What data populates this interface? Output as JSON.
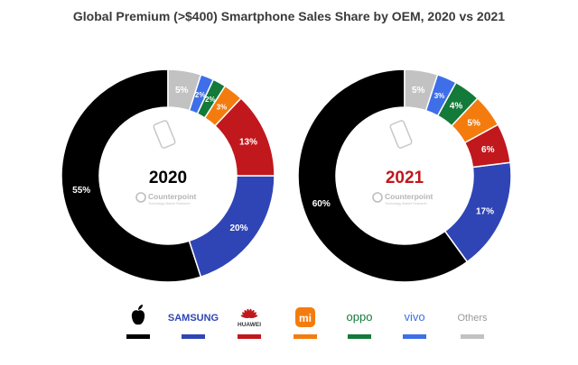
{
  "colors": {
    "apple": "#000000",
    "samsung": "#2f45b5",
    "huawei": "#c0181c",
    "xiaomi": "#f47c0e",
    "oppo": "#137a3a",
    "vivo": "#3e6fe8",
    "others": "#c2c2c2",
    "year_2020": "#000000",
    "year_2021": "#c0181c"
  },
  "chart_data": [
    {
      "type": "pie",
      "title": "Global Premium (>$400) Smartphone Sales Share by OEM, 2020 vs 2021",
      "center_label": "2020",
      "watermark": "Counterpoint",
      "watermark_sub": "Technology Market Research",
      "slices": [
        {
          "key": "apple",
          "label": "",
          "value": 55
        },
        {
          "key": "samsung",
          "label": "SAMSUNG",
          "value": 20
        },
        {
          "key": "huawei",
          "label": "HUAWEI",
          "value": 13
        },
        {
          "key": "xiaomi",
          "label": "",
          "value": 3
        },
        {
          "key": "oppo",
          "label": "oppo",
          "value": 2
        },
        {
          "key": "vivo",
          "label": "vivo",
          "value": 2
        },
        {
          "key": "others",
          "label": "Others",
          "value": 5
        }
      ]
    },
    {
      "type": "pie",
      "center_label": "2021",
      "watermark": "Counterpoint",
      "watermark_sub": "Technology Market Research",
      "slices": [
        {
          "key": "apple",
          "label": "",
          "value": 60
        },
        {
          "key": "samsung",
          "label": "SAMSUNG",
          "value": 17
        },
        {
          "key": "huawei",
          "label": "HUAWEI",
          "value": 6
        },
        {
          "key": "xiaomi",
          "label": "",
          "value": 5
        },
        {
          "key": "oppo",
          "label": "oppo",
          "value": 4
        },
        {
          "key": "vivo",
          "label": "vivo",
          "value": 3
        },
        {
          "key": "others",
          "label": "Others",
          "value": 5
        }
      ]
    }
  ],
  "legend": {
    "placement": "bottom",
    "items": [
      {
        "key": "apple",
        "label": "",
        "icon": "apple-logo-icon"
      },
      {
        "key": "samsung",
        "label": "SAMSUNG",
        "icon": ""
      },
      {
        "key": "huawei",
        "label": "HUAWEI",
        "icon": "huawei-logo-icon"
      },
      {
        "key": "xiaomi",
        "label": "mi",
        "icon": "xiaomi-logo-icon"
      },
      {
        "key": "oppo",
        "label": "oppo",
        "icon": ""
      },
      {
        "key": "vivo",
        "label": "vivo",
        "icon": ""
      },
      {
        "key": "others",
        "label": "Others",
        "icon": ""
      }
    ]
  }
}
